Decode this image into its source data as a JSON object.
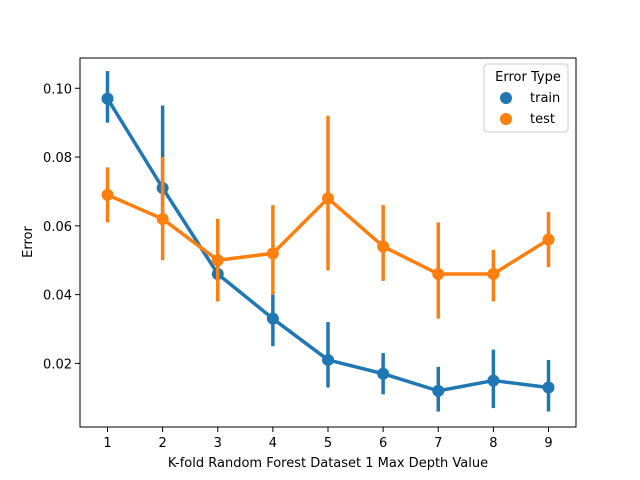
{
  "chart_data": {
    "type": "line",
    "title": "",
    "xlabel": "K-fold Random Forest Dataset 1 Max Depth Value",
    "ylabel": "Error",
    "categories": [
      "1",
      "2",
      "3",
      "4",
      "5",
      "6",
      "7",
      "8",
      "9"
    ],
    "ylim": [
      0.0015,
      0.1088
    ],
    "yticks": [
      0.02,
      0.04,
      0.06,
      0.08,
      0.1
    ],
    "ytick_labels": [
      "0.02",
      "0.04",
      "0.06",
      "0.08",
      "0.10"
    ],
    "grid": false,
    "legend": {
      "title": "Error Type",
      "placement": "top-right",
      "entries": [
        "train",
        "test"
      ]
    },
    "series": [
      {
        "name": "train",
        "color": "#1f77b4",
        "values": [
          0.097,
          0.071,
          0.046,
          0.033,
          0.021,
          0.017,
          0.012,
          0.015,
          0.013
        ],
        "ci_low": [
          0.09,
          0.06,
          0.038,
          0.025,
          0.013,
          0.011,
          0.006,
          0.007,
          0.006
        ],
        "ci_high": [
          0.105,
          0.095,
          0.055,
          0.04,
          0.032,
          0.023,
          0.019,
          0.024,
          0.021
        ]
      },
      {
        "name": "test",
        "color": "#ff7f0e",
        "values": [
          0.069,
          0.062,
          0.05,
          0.052,
          0.068,
          0.054,
          0.046,
          0.046,
          0.056
        ],
        "ci_low": [
          0.061,
          0.05,
          0.038,
          0.04,
          0.047,
          0.044,
          0.033,
          0.038,
          0.048
        ],
        "ci_high": [
          0.077,
          0.08,
          0.062,
          0.066,
          0.092,
          0.066,
          0.061,
          0.053,
          0.064
        ]
      }
    ]
  }
}
